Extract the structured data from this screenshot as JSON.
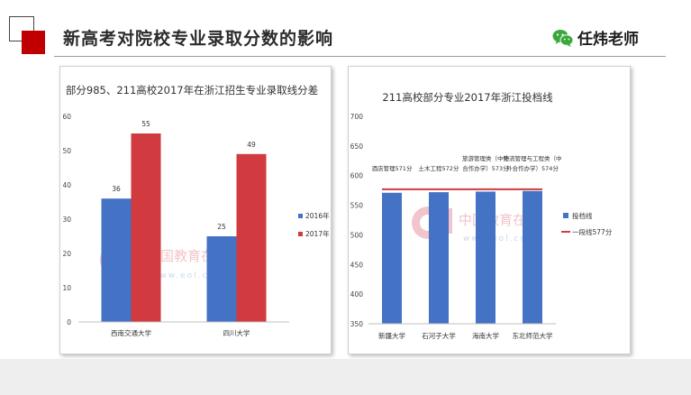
{
  "header": {
    "title": "新高考对院校专业录取分数的影响",
    "author": "任炜老师",
    "wechat_icon": "wechat-icon",
    "accent_color": "#c00000"
  },
  "watermark": {
    "text_cn": "中国教育在线",
    "text_en": "www.eol.cn",
    "logo": "eol-logo"
  },
  "chart_data": [
    {
      "type": "bar",
      "title": "部分985、211高校2017年在浙江招生专业录取线分差",
      "categories": [
        "西南交通大学",
        "四川大学"
      ],
      "series": [
        {
          "name": "2016年",
          "color": "#4472c4",
          "values": [
            36,
            25
          ]
        },
        {
          "name": "2017年",
          "color": "#d13a3e",
          "values": [
            55,
            49
          ]
        }
      ],
      "yticks": [
        "0",
        "10",
        "20",
        "30",
        "40",
        "50",
        "60"
      ],
      "ylim": [
        0,
        60
      ],
      "grid": false,
      "legend": "right"
    },
    {
      "type": "bar",
      "title": "211高校部分专业2017年浙江投档线",
      "categories": [
        "新疆大学",
        "石河子大学",
        "海南大学",
        "东北师范大学"
      ],
      "series": [
        {
          "name": "投档线",
          "color": "#4472c4",
          "values": [
            571,
            572,
            573,
            574
          ]
        },
        {
          "name": "一段线577分",
          "type": "line",
          "color": "#d13a3e",
          "values": [
            577,
            577,
            577,
            577
          ]
        }
      ],
      "data_labels": [
        [
          "酒店管理571分"
        ],
        [
          "土木工程572分"
        ],
        [
          "旅游管理类（中外",
          "合作办学）573分"
        ],
        [
          "物流管理与工程类（中",
          "外合作办学）574分"
        ]
      ],
      "yticks": [
        "350",
        "400",
        "450",
        "500",
        "550",
        "600",
        "650",
        "700"
      ],
      "ylim": [
        350,
        700
      ],
      "grid": false,
      "legend": "right"
    }
  ]
}
